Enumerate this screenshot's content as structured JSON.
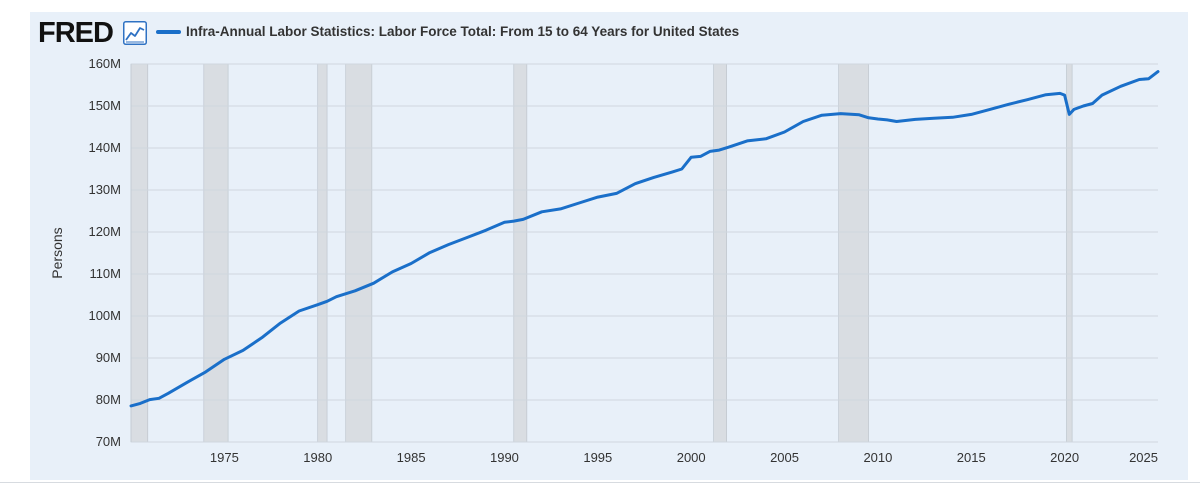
{
  "brand": {
    "name": "FRED",
    "icon": "line-chart-icon"
  },
  "colors": {
    "series": "#1a6fc9",
    "recession": "#d9dde2",
    "grid": "#cfd6de",
    "panel": "#e8f0f9"
  },
  "chart_data": {
    "type": "line",
    "title": "",
    "xlabel": "",
    "ylabel": "Persons",
    "xlim": [
      1970.0,
      2025.0
    ],
    "ylim": [
      70000000,
      160000000
    ],
    "grid": true,
    "legend_position": "top-left",
    "x_ticks": [
      1975,
      1980,
      1985,
      1990,
      1995,
      2000,
      2005,
      2010,
      2015,
      2020,
      2025
    ],
    "x_tick_labels": [
      "1975",
      "1980",
      "1985",
      "1990",
      "1995",
      "2000",
      "2005",
      "2010",
      "2015",
      "2020",
      "2025"
    ],
    "y_ticks": [
      70000000,
      80000000,
      90000000,
      100000000,
      110000000,
      120000000,
      130000000,
      140000000,
      150000000,
      160000000
    ],
    "y_tick_labels": [
      "70M",
      "80M",
      "90M",
      "100M",
      "110M",
      "120M",
      "130M",
      "140M",
      "150M",
      "160M"
    ],
    "recessions": [
      [
        1970.0,
        1970.9
      ],
      [
        1973.9,
        1975.2
      ],
      [
        1980.0,
        1980.5
      ],
      [
        1981.5,
        1982.9
      ],
      [
        1990.5,
        1991.2
      ],
      [
        2001.2,
        2001.9
      ],
      [
        2007.9,
        2009.5
      ],
      [
        2020.1,
        2020.4
      ]
    ],
    "series": [
      {
        "name": "Infra-Annual Labor Statistics: Labor Force Total: From 15 to 64 Years for United States",
        "x": [
          1970.0,
          1970.5,
          1971.0,
          1971.5,
          1972.0,
          1973.0,
          1974.0,
          1975.0,
          1976.0,
          1977.0,
          1978.0,
          1979.0,
          1980.0,
          1980.5,
          1981.0,
          1982.0,
          1983.0,
          1984.0,
          1985.0,
          1986.0,
          1987.0,
          1988.0,
          1989.0,
          1990.0,
          1990.5,
          1991.0,
          1992.0,
          1993.0,
          1994.0,
          1995.0,
          1996.0,
          1997.0,
          1998.0,
          1999.0,
          1999.5,
          2000.0,
          2000.5,
          2001.0,
          2001.5,
          2002.0,
          2003.0,
          2004.0,
          2005.0,
          2006.0,
          2007.0,
          2008.0,
          2009.0,
          2009.5,
          2010.0,
          2010.5,
          2011.0,
          2012.0,
          2013.0,
          2014.0,
          2015.0,
          2016.0,
          2017.0,
          2018.0,
          2019.0,
          2019.75,
          2020.0,
          2020.25,
          2020.5,
          2021.0,
          2021.5,
          2022.0,
          2023.0,
          2024.0,
          2024.5,
          2025.0
        ],
        "values": [
          78600000,
          79200000,
          80100000,
          80400000,
          81600000,
          84200000,
          86700000,
          89700000,
          91800000,
          94800000,
          98300000,
          101200000,
          102700000,
          103500000,
          104600000,
          106000000,
          107800000,
          110500000,
          112500000,
          115100000,
          117000000,
          118700000,
          120400000,
          122300000,
          122600000,
          123000000,
          124800000,
          125500000,
          126900000,
          128300000,
          129200000,
          131500000,
          133000000,
          134300000,
          135000000,
          137800000,
          138000000,
          139200000,
          139500000,
          140200000,
          141700000,
          142200000,
          143800000,
          146300000,
          147800000,
          148200000,
          147900000,
          147200000,
          146900000,
          146700000,
          146300000,
          146800000,
          147100000,
          147300000,
          148000000,
          149200000,
          150400000,
          151500000,
          152700000,
          153000000,
          152600000,
          148000000,
          149200000,
          150000000,
          150600000,
          152600000,
          154700000,
          156300000,
          156500000,
          158200000
        ]
      }
    ]
  }
}
